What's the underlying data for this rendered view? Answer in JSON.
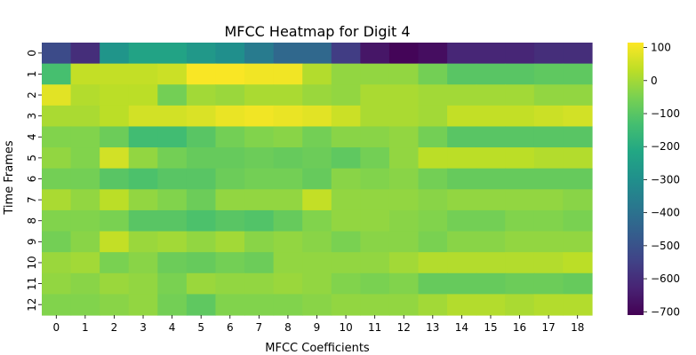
{
  "chart_data": {
    "type": "heatmap",
    "title": "MFCC Heatmap for Digit 4",
    "xlabel": "MFCC Coefficients",
    "ylabel": "Time Frames",
    "x_ticks": [
      "0",
      "1",
      "2",
      "3",
      "4",
      "5",
      "6",
      "7",
      "8",
      "9",
      "10",
      "11",
      "12",
      "13",
      "14",
      "15",
      "16",
      "17",
      "18"
    ],
    "y_ticks": [
      "0",
      "1",
      "2",
      "3",
      "4",
      "5",
      "6",
      "7",
      "8",
      "9",
      "10",
      "11",
      "12"
    ],
    "colormap": "viridis",
    "vmin": -710,
    "vmax": 115,
    "colorbar_ticks": [
      100,
      0,
      -100,
      -200,
      -300,
      -400,
      -500,
      -600,
      -700
    ],
    "values": [
      [
        -520,
        -600,
        -280,
        -230,
        -230,
        -270,
        -300,
        -370,
        -430,
        -430,
        -560,
        -660,
        -700,
        -680,
        -620,
        -620,
        -620,
        -600,
        -600
      ],
      [
        -130,
        40,
        40,
        40,
        50,
        110,
        110,
        100,
        100,
        20,
        -20,
        -20,
        -20,
        -60,
        -100,
        -100,
        -100,
        -90,
        -90
      ],
      [
        80,
        20,
        30,
        30,
        -60,
        0,
        -10,
        10,
        10,
        -10,
        -20,
        10,
        10,
        0,
        0,
        0,
        0,
        -20,
        -20
      ],
      [
        10,
        10,
        30,
        60,
        60,
        70,
        90,
        100,
        90,
        80,
        50,
        10,
        10,
        0,
        40,
        40,
        40,
        50,
        60
      ],
      [
        -40,
        -40,
        -70,
        -140,
        -140,
        -100,
        -60,
        -40,
        -30,
        -60,
        -30,
        -30,
        -20,
        -60,
        -100,
        -100,
        -100,
        -100,
        -100
      ],
      [
        -20,
        -40,
        60,
        -20,
        -60,
        -80,
        -80,
        -70,
        -80,
        -70,
        -90,
        -60,
        -20,
        30,
        30,
        30,
        30,
        20,
        20
      ],
      [
        -60,
        -60,
        -100,
        -120,
        -100,
        -100,
        -70,
        -60,
        -60,
        -80,
        -30,
        -40,
        -30,
        -60,
        -80,
        -80,
        -80,
        -80,
        -80
      ],
      [
        10,
        -20,
        30,
        -20,
        -40,
        -70,
        -20,
        -20,
        -20,
        40,
        -20,
        -20,
        -20,
        -30,
        -20,
        -20,
        -20,
        -20,
        -30
      ],
      [
        -40,
        -40,
        -50,
        -100,
        -100,
        -120,
        -100,
        -110,
        -80,
        -40,
        -20,
        -20,
        -30,
        -40,
        -60,
        -60,
        -40,
        -40,
        -50
      ],
      [
        -60,
        -30,
        40,
        -10,
        0,
        -20,
        0,
        -30,
        -20,
        -30,
        -50,
        -30,
        -30,
        -50,
        -30,
        -30,
        -20,
        -20,
        -20
      ],
      [
        -10,
        0,
        -50,
        -30,
        -70,
        -80,
        -60,
        -70,
        -20,
        -20,
        -20,
        -20,
        0,
        20,
        20,
        20,
        20,
        20,
        30
      ],
      [
        -20,
        -30,
        -10,
        -20,
        -50,
        -10,
        -20,
        -20,
        -10,
        -20,
        -40,
        -50,
        -40,
        -80,
        -80,
        -80,
        -70,
        -70,
        -80
      ],
      [
        -40,
        -40,
        -30,
        -20,
        -60,
        -90,
        -40,
        -40,
        -40,
        -30,
        -20,
        -20,
        -20,
        0,
        20,
        20,
        10,
        20,
        20
      ]
    ]
  }
}
